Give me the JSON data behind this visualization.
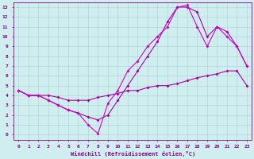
{
  "line1_x": [
    0,
    1,
    2,
    3,
    4,
    5,
    6,
    7,
    8,
    9,
    10,
    11,
    12,
    13,
    14,
    15,
    16,
    17,
    18,
    19,
    20,
    21,
    22,
    23
  ],
  "line1_y": [
    4.5,
    4.0,
    4.0,
    3.5,
    3.0,
    2.5,
    2.2,
    1.8,
    1.5,
    2.0,
    3.5,
    5.0,
    6.5,
    8.0,
    9.5,
    11.5,
    13.0,
    13.0,
    12.5,
    10.0,
    11.0,
    10.5,
    9.0,
    7.0
  ],
  "line2_x": [
    0,
    1,
    2,
    3,
    4,
    5,
    6,
    7,
    8,
    9,
    10,
    11,
    12,
    13,
    14,
    15,
    16,
    17,
    18,
    19,
    20,
    21,
    22,
    23
  ],
  "line2_y": [
    4.5,
    4.0,
    4.0,
    3.5,
    3.0,
    2.5,
    2.2,
    1.0,
    0.1,
    3.2,
    4.5,
    6.5,
    7.5,
    9.0,
    10.0,
    11.0,
    13.0,
    13.2,
    11.0,
    9.0,
    11.0,
    10.0,
    9.0,
    7.0
  ],
  "line3_x": [
    0,
    1,
    2,
    3,
    4,
    5,
    6,
    7,
    8,
    9,
    10,
    11,
    12,
    13,
    14,
    15,
    16,
    17,
    18,
    19,
    20,
    21,
    22,
    23
  ],
  "line3_y": [
    4.5,
    4.0,
    4.0,
    4.0,
    3.8,
    3.5,
    3.5,
    3.5,
    3.8,
    4.0,
    4.2,
    4.5,
    4.5,
    4.8,
    5.0,
    5.0,
    5.2,
    5.5,
    5.8,
    6.0,
    6.2,
    6.5,
    6.5,
    5.0
  ],
  "line1_color": "#aa00aa",
  "line2_color": "#cc00cc",
  "line3_color": "#aa00aa",
  "bg_color": "#d0eef0",
  "grid_color": "#b0d8d8",
  "xlabel": "Windchill (Refroidissement éolien,°C)",
  "xlim": [
    -0.5,
    23.5
  ],
  "ylim": [
    -0.5,
    13.5
  ],
  "xticks": [
    0,
    1,
    2,
    3,
    4,
    5,
    6,
    7,
    8,
    9,
    10,
    11,
    12,
    13,
    14,
    15,
    16,
    17,
    18,
    19,
    20,
    21,
    22,
    23
  ],
  "yticks": [
    0,
    1,
    2,
    3,
    4,
    5,
    6,
    7,
    8,
    9,
    10,
    11,
    12,
    13
  ]
}
